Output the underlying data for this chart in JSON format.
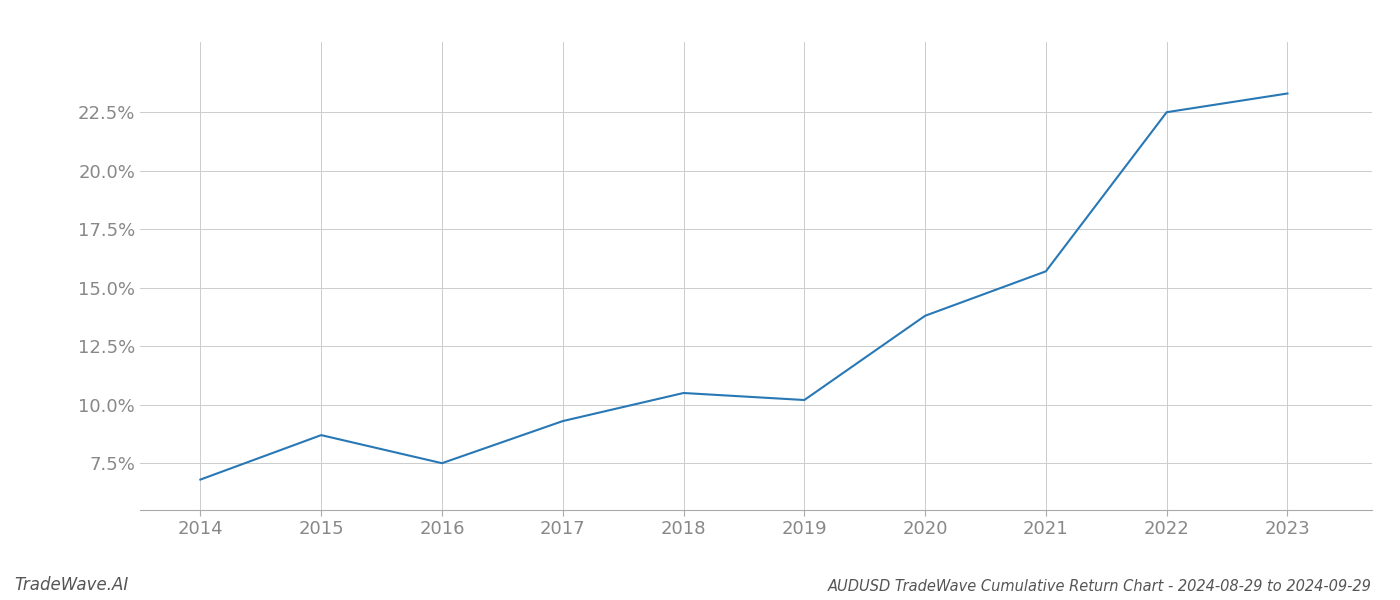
{
  "x_values": [
    2014,
    2015,
    2016,
    2017,
    2018,
    2019,
    2020,
    2021,
    2022,
    2023
  ],
  "y_values": [
    6.8,
    8.7,
    7.5,
    9.3,
    10.5,
    10.2,
    13.8,
    15.7,
    22.5,
    23.3
  ],
  "line_color": "#2878b5",
  "line_width": 1.5,
  "background_color": "#ffffff",
  "grid_color": "#cccccc",
  "title": "AUDUSD TradeWave Cumulative Return Chart - 2024-08-29 to 2024-09-29",
  "watermark": "TradeWave.AI",
  "xlim": [
    2013.5,
    2023.7
  ],
  "ylim": [
    5.5,
    25.5
  ],
  "yticks": [
    7.5,
    10.0,
    12.5,
    15.0,
    17.5,
    20.0,
    22.5
  ],
  "xticks": [
    2014,
    2015,
    2016,
    2017,
    2018,
    2019,
    2020,
    2021,
    2022,
    2023
  ],
  "title_fontsize": 10.5,
  "tick_fontsize": 13,
  "watermark_fontsize": 12
}
